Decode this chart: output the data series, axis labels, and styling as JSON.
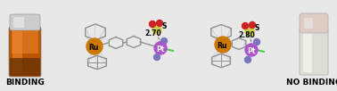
{
  "background_color": "#e8e8e8",
  "binding_label": "BINDING",
  "no_binding_label": "NO BINDING",
  "label_fontsize": 6.5,
  "label_color": "#000000",
  "label_fontweight": "bold",
  "structure1_distance": "2.70",
  "structure2_distance": "2.80",
  "gray_line": "#909090",
  "ru_color": "#cc7700",
  "pt_color": "#aa55cc",
  "s_color": "#cccc44",
  "o_color": "#cc2222",
  "n_color": "#7777bb",
  "cl_color": "#44cc44",
  "dist_color": "#000000",
  "s_label_color": "#000000"
}
